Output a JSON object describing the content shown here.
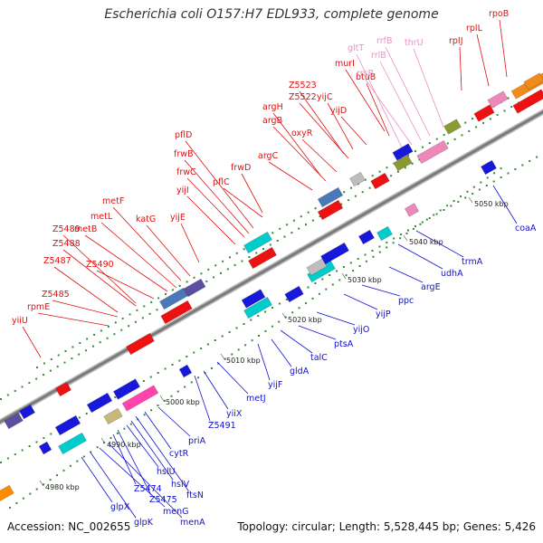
{
  "header": {
    "title": "Escherichia coli O157:H7 EDL933, complete genome"
  },
  "footer": {
    "accession": "Accession: NC_002655",
    "topology": "Topology: circular; Length: 5,528,445 bp; Genes: 5,426"
  },
  "colors": {
    "forward_label": "#dd1111",
    "rna_label": "#f08cc8",
    "reverse_label": "#1111cc",
    "backbone": "#8a8a8a",
    "tick": "#2f8f2f"
  },
  "ruler": [
    {
      "label": "4980 kbp"
    },
    {
      "label": "4990 kbp"
    },
    {
      "label": "5000 kbp"
    },
    {
      "label": "5010 kbp"
    },
    {
      "label": "5020 kbp"
    },
    {
      "label": "5030 kbp"
    },
    {
      "label": "5040 kbp"
    },
    {
      "label": "5050 kbp"
    }
  ],
  "forward_genes": [
    {
      "name": "yiiU"
    },
    {
      "name": "rpmE"
    },
    {
      "name": "Z5485"
    },
    {
      "name": "Z5487"
    },
    {
      "name": "Z5488"
    },
    {
      "name": "Z5489"
    },
    {
      "name": "Z5490"
    },
    {
      "name": "metB"
    },
    {
      "name": "metL"
    },
    {
      "name": "metF"
    },
    {
      "name": "katG"
    },
    {
      "name": "yijE"
    },
    {
      "name": "yijI"
    },
    {
      "name": "frwC"
    },
    {
      "name": "frwB"
    },
    {
      "name": "pflD"
    },
    {
      "name": "pflC"
    },
    {
      "name": "frwD"
    },
    {
      "name": "argC"
    },
    {
      "name": "argB"
    },
    {
      "name": "argH"
    },
    {
      "name": "oxyR"
    },
    {
      "name": "Z5522"
    },
    {
      "name": "Z5523"
    },
    {
      "name": "yijC"
    },
    {
      "name": "yijD"
    },
    {
      "name": "btuB"
    },
    {
      "name": "murI"
    },
    {
      "name": "rplL"
    },
    {
      "name": "rpoB"
    },
    {
      "name": "rpIJ"
    }
  ],
  "rna_genes": [
    {
      "name": "gltT"
    },
    {
      "name": "rrsB"
    },
    {
      "name": "rrlB"
    },
    {
      "name": "rrfB"
    },
    {
      "name": "thrU"
    }
  ],
  "reverse_genes": [
    {
      "name": "glpX"
    },
    {
      "name": "glpK"
    },
    {
      "name": "menG"
    },
    {
      "name": "menA"
    },
    {
      "name": "Z5474"
    },
    {
      "name": "Z5475"
    },
    {
      "name": "hslU"
    },
    {
      "name": "hslV"
    },
    {
      "name": "ftsN"
    },
    {
      "name": "cytR"
    },
    {
      "name": "priA"
    },
    {
      "name": "Z5491"
    },
    {
      "name": "yiiX"
    },
    {
      "name": "metJ"
    },
    {
      "name": "yijF"
    },
    {
      "name": "gldA"
    },
    {
      "name": "talC"
    },
    {
      "name": "ptsA"
    },
    {
      "name": "yijO"
    },
    {
      "name": "yijP"
    },
    {
      "name": "ppc"
    },
    {
      "name": "argE"
    },
    {
      "name": "udhA"
    },
    {
      "name": "trmA"
    },
    {
      "name": "coaA"
    }
  ]
}
